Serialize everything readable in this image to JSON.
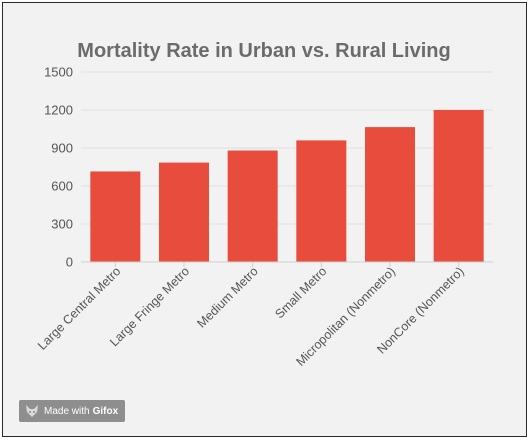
{
  "chart_data": {
    "type": "bar",
    "title": "Mortality Rate in Urban vs. Rural Living",
    "categories": [
      "Large Central Metro",
      "Large Fringe Metro",
      "Medium Metro",
      "Small Metro",
      "Micropolitan (Nonmetro)",
      "NonCore (Nonmetro)"
    ],
    "values": [
      715,
      785,
      880,
      960,
      1065,
      1200
    ],
    "ylim": [
      0,
      1500
    ],
    "yticks": [
      "0",
      "300",
      "600",
      "900",
      "1200",
      "1500"
    ],
    "bar_color": "#e84c3d",
    "grid": true
  },
  "watermark": {
    "made_with": "Made with",
    "brand": "Gifox"
  }
}
